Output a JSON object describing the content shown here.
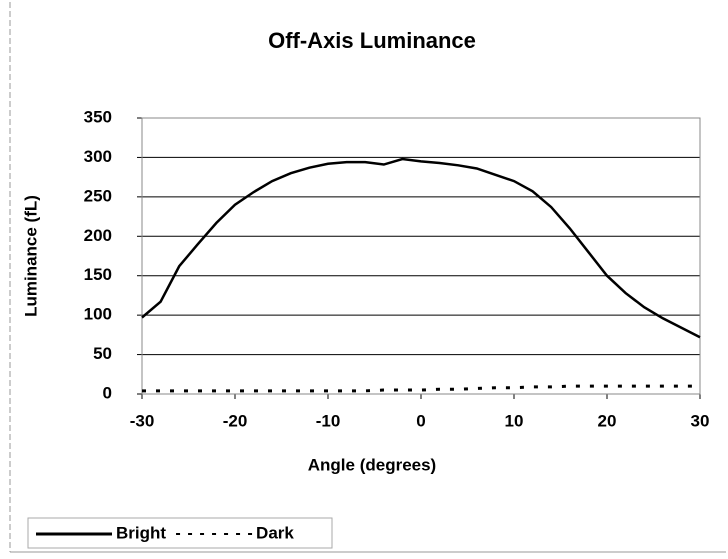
{
  "chart_data": {
    "type": "line",
    "title": "Off-Axis Luminance",
    "x_label": "Angle (degrees)",
    "y_label": "Luminance (fL)",
    "x": [
      -30,
      -28,
      -26,
      -24,
      -22,
      -20,
      -18,
      -16,
      -14,
      -12,
      -10,
      -8,
      -6,
      -4,
      -2,
      0,
      2,
      4,
      6,
      8,
      10,
      12,
      14,
      16,
      18,
      20,
      22,
      24,
      26,
      28,
      30
    ],
    "series": [
      {
        "name": "Bright",
        "color": "#000000",
        "dash": false,
        "values": [
          97,
          117,
          162,
          190,
          217,
          240,
          256,
          270,
          280,
          287,
          292,
          294,
          294,
          291,
          298,
          295,
          293,
          290,
          286,
          278,
          270,
          257,
          237,
          210,
          180,
          150,
          128,
          110,
          96,
          84,
          72
        ]
      },
      {
        "name": "Dark",
        "color": "#000000",
        "dash": true,
        "values": [
          4,
          4,
          4,
          4,
          4,
          4,
          4,
          4,
          4,
          4,
          4,
          4,
          4,
          5,
          5,
          5,
          6,
          6,
          7,
          8,
          8,
          9,
          9,
          10,
          10,
          10,
          10,
          10,
          10,
          10,
          10
        ]
      }
    ],
    "xlim": [
      -30,
      30
    ],
    "xticks": [
      -30,
      -20,
      -10,
      0,
      10,
      20,
      30
    ],
    "ylim": [
      0,
      350
    ],
    "yticks": [
      0,
      50,
      100,
      150,
      200,
      250,
      300,
      350
    ],
    "grid": true,
    "legend": "bottom-left"
  }
}
